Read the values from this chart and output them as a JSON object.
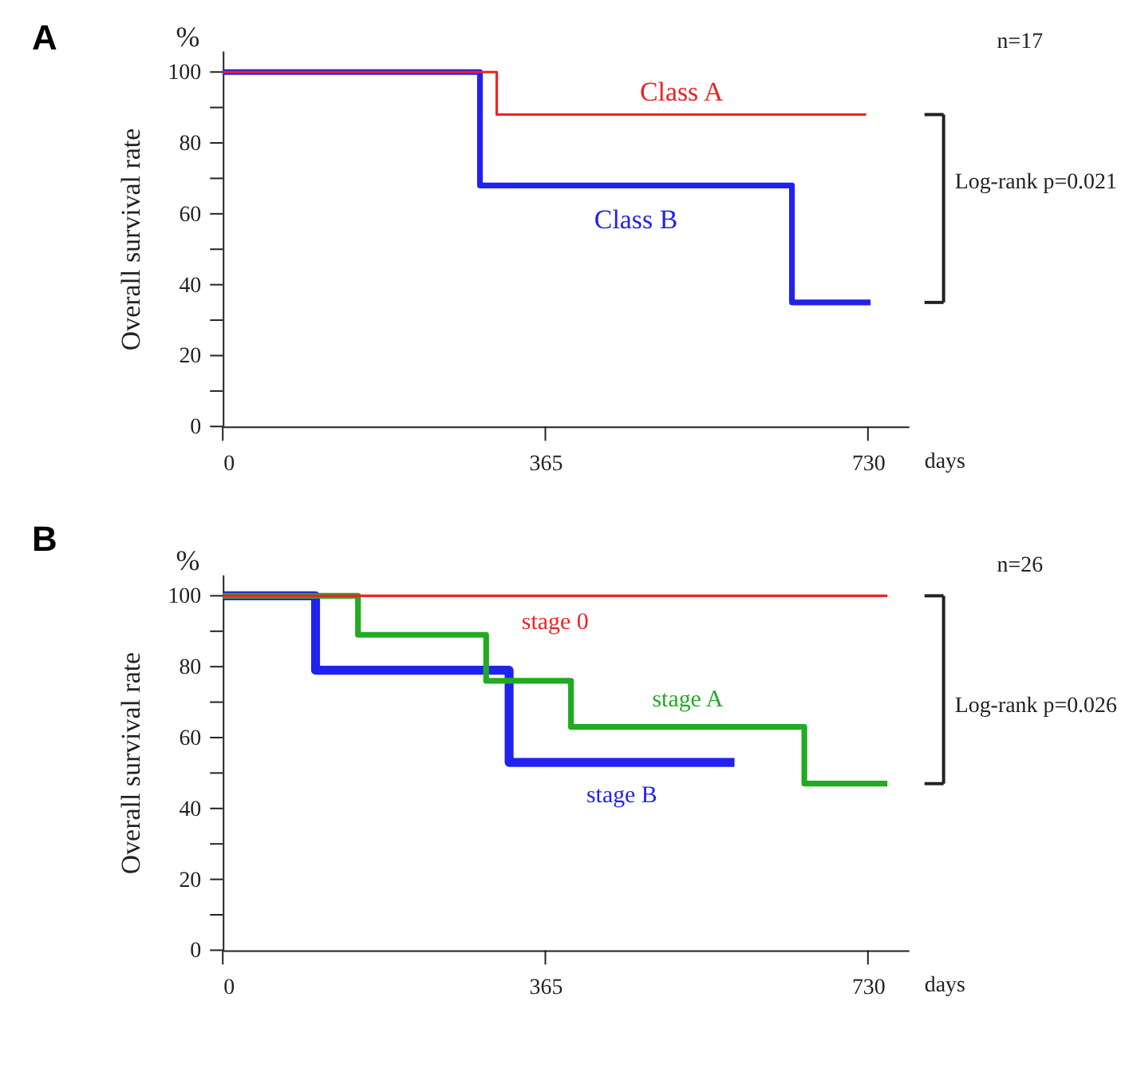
{
  "chart_data": [
    {
      "type": "step",
      "title": "A",
      "xlabel": "days",
      "ylabel": "Overall survival rate",
      "xlim": [
        0,
        776
      ],
      "ylim": [
        0,
        106
      ],
      "xticks": [
        0,
        365,
        730
      ],
      "yticks": [
        0,
        {
          "value": 10,
          "label": null
        },
        20,
        {
          "value": 30,
          "label": null
        },
        40,
        {
          "value": 50,
          "label": null
        },
        60,
        {
          "value": 70,
          "label": null
        },
        80,
        {
          "value": 90,
          "label": null
        },
        100
      ],
      "series": [
        {
          "name": "Class B",
          "color": "#2222ee",
          "x": [
            0,
            291,
            644,
            733
          ],
          "values": [
            100,
            68,
            35,
            35
          ]
        },
        {
          "name": "Class A",
          "color": "#ee2222",
          "x": [
            0,
            310,
            728
          ],
          "values": [
            100,
            88,
            88
          ]
        }
      ],
      "annotations": [
        "%",
        "n=17",
        "Log-rank p=0.021"
      ],
      "grid": false,
      "legend": false
    },
    {
      "type": "step",
      "title": "B",
      "xlabel": "days",
      "ylabel": "Overall survival rate",
      "xlim": [
        0,
        776
      ],
      "ylim": [
        0,
        106
      ],
      "xticks": [
        0,
        365,
        730
      ],
      "yticks": [
        0,
        {
          "value": 10,
          "label": null
        },
        20,
        {
          "value": 30,
          "label": null
        },
        40,
        {
          "value": 50,
          "label": null
        },
        60,
        {
          "value": 70,
          "label": null
        },
        80,
        {
          "value": 90,
          "label": null
        },
        100
      ],
      "series": [
        {
          "name": "stage B",
          "color": "#2222ee",
          "x": [
            0,
            105,
            324,
            579
          ],
          "values": [
            100,
            79,
            53,
            53
          ]
        },
        {
          "name": "stage A",
          "color": "#22aa22",
          "x": [
            0,
            153,
            298,
            394,
            658,
            752
          ],
          "values": [
            100,
            89,
            76,
            63,
            47,
            47
          ]
        },
        {
          "name": "stage 0",
          "color": "#ee2222",
          "x": [
            0,
            752
          ],
          "values": [
            100,
            100
          ]
        }
      ],
      "annotations": [
        "%",
        "n=26",
        "Log-rank p=0.026"
      ],
      "grid": false,
      "legend": false
    }
  ]
}
